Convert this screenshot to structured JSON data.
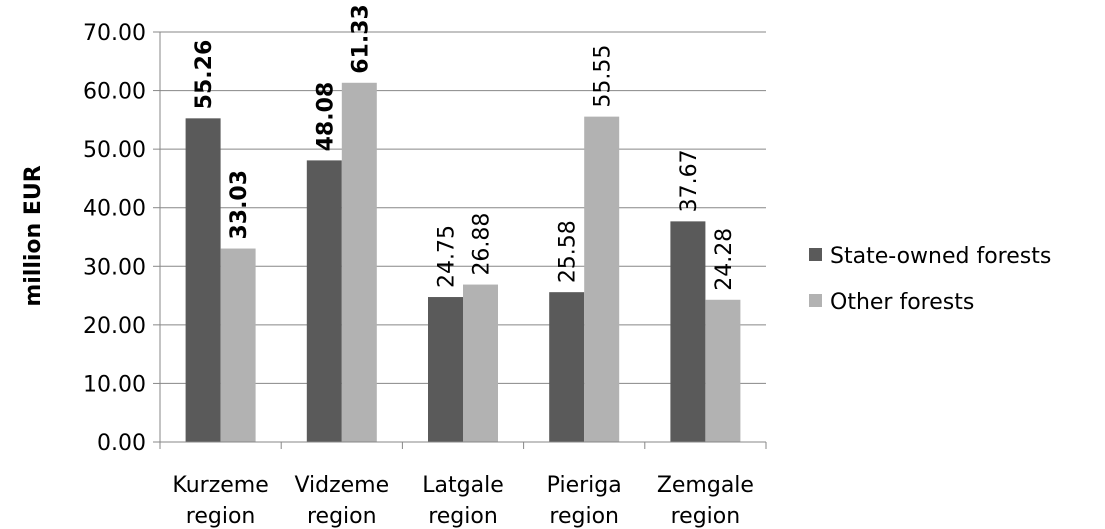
{
  "chart_data": {
    "type": "bar",
    "title": "",
    "xlabel": "",
    "ylabel": "million EUR",
    "ylim": [
      0,
      70
    ],
    "yticks": [
      "0.00",
      "10.00",
      "20.00",
      "30.00",
      "40.00",
      "50.00",
      "60.00",
      "70.00"
    ],
    "categories": [
      [
        "Kurzeme",
        "region"
      ],
      [
        "Vidzeme",
        "region"
      ],
      [
        "Latgale",
        "region"
      ],
      [
        "Pieriga",
        "region"
      ],
      [
        "Zemgale",
        "region"
      ]
    ],
    "series": [
      {
        "name": "State-owned forests",
        "color": "#5a5a5a",
        "values": [
          55.26,
          48.08,
          24.75,
          25.58,
          37.67
        ],
        "labels": [
          "55.26",
          "48.08",
          "24.75",
          "25.58",
          "37.67"
        ],
        "label_bold": [
          true,
          true,
          false,
          false,
          false
        ]
      },
      {
        "name": "Other forests",
        "color": "#b2b2b2",
        "values": [
          33.03,
          61.33,
          26.88,
          55.55,
          24.28
        ],
        "labels": [
          "33.03",
          "61.33",
          "26.88",
          "55.55",
          "24.28"
        ],
        "label_bold": [
          true,
          true,
          false,
          false,
          false
        ]
      }
    ],
    "grid": true,
    "legend_position": "right"
  }
}
